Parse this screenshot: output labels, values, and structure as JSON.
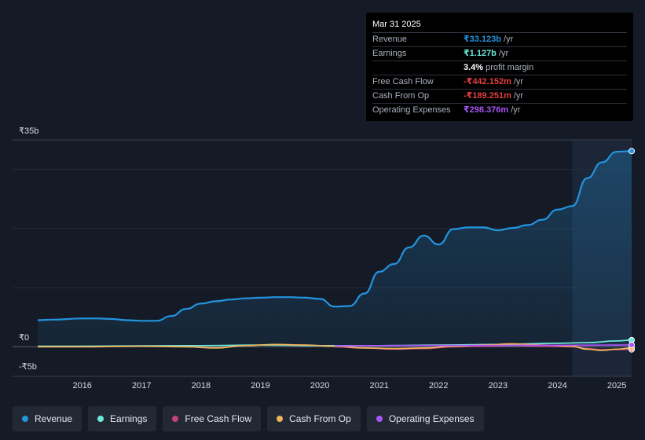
{
  "tooltip": {
    "date": "Mar 31 2025",
    "rows": [
      {
        "label": "Revenue",
        "value": "₹33.123b",
        "unit": "/yr",
        "color": "#2394df"
      },
      {
        "label": "Earnings",
        "value": "₹1.127b",
        "unit": "/yr",
        "color": "#6ee7dc"
      },
      {
        "label": "",
        "value": "3.4%",
        "unit": "profit margin",
        "color": "#ffffff"
      },
      {
        "label": "Free Cash Flow",
        "value": "-₹442.152m",
        "unit": "/yr",
        "color": "#e53e3e"
      },
      {
        "label": "Cash From Op",
        "value": "-₹189.251m",
        "unit": "/yr",
        "color": "#e53e3e"
      },
      {
        "label": "Operating Expenses",
        "value": "₹298.376m",
        "unit": "/yr",
        "color": "#a855f7"
      }
    ]
  },
  "legend": [
    {
      "label": "Revenue",
      "color": "#2394df"
    },
    {
      "label": "Earnings",
      "color": "#6ee7dc"
    },
    {
      "label": "Free Cash Flow",
      "color": "#c2417a"
    },
    {
      "label": "Cash From Op",
      "color": "#f0b45a"
    },
    {
      "label": "Operating Expenses",
      "color": "#a855f7"
    }
  ],
  "chart_data": {
    "type": "area",
    "y_unit": "₹b",
    "ylim": [
      -5,
      35
    ],
    "y_tick_labels": [
      {
        "value": 35,
        "label": "₹35b"
      },
      {
        "value": 0,
        "label": "₹0"
      },
      {
        "value": -5,
        "label": "-₹5b"
      }
    ],
    "x_tick_labels": [
      "2016",
      "2017",
      "2018",
      "2019",
      "2020",
      "2021",
      "2022",
      "2023",
      "2024",
      "2025"
    ],
    "x_tick_values": [
      2016,
      2017,
      2018,
      2019,
      2020,
      2021,
      2022,
      2023,
      2024,
      2025
    ],
    "xlim": [
      2015.25,
      2025.25
    ],
    "highlight_start": 2024.25,
    "series": [
      {
        "name": "Revenue",
        "color": "#2394df",
        "x": [
          2015.25,
          2015.5,
          2016.0,
          2016.25,
          2016.5,
          2016.75,
          2017.0,
          2017.25,
          2017.5,
          2017.75,
          2018.0,
          2018.25,
          2018.5,
          2018.75,
          2019.0,
          2019.25,
          2019.5,
          2019.75,
          2020.0,
          2020.25,
          2020.5,
          2020.75,
          2021.0,
          2021.25,
          2021.5,
          2021.75,
          2022.0,
          2022.25,
          2022.5,
          2022.75,
          2023.0,
          2023.25,
          2023.5,
          2023.75,
          2024.0,
          2024.25,
          2024.5,
          2024.75,
          2025.0,
          2025.25
        ],
        "values": [
          4.5,
          4.6,
          4.8,
          4.8,
          4.7,
          4.5,
          4.4,
          4.4,
          5.2,
          6.4,
          7.3,
          7.7,
          8.0,
          8.2,
          8.3,
          8.4,
          8.4,
          8.3,
          8.1,
          6.8,
          6.9,
          9.0,
          12.7,
          14.0,
          16.8,
          18.8,
          17.3,
          19.9,
          20.2,
          20.2,
          19.7,
          20.1,
          20.6,
          21.5,
          23.2,
          23.8,
          28.5,
          31.2,
          33.0,
          33.1
        ]
      },
      {
        "name": "Earnings",
        "color": "#6ee7dc",
        "x": [
          2015.25,
          2016.0,
          2017.0,
          2018.0,
          2019.0,
          2020.0,
          2021.0,
          2022.0,
          2023.0,
          2024.0,
          2024.5,
          2025.0,
          2025.25
        ],
        "values": [
          0.1,
          0.1,
          0.15,
          0.2,
          0.3,
          0.2,
          0.2,
          0.3,
          0.4,
          0.6,
          0.7,
          1.0,
          1.127
        ]
      },
      {
        "name": "Free Cash Flow",
        "color": "#c2417a",
        "x": [
          2020.25,
          2020.75,
          2021.25,
          2021.75,
          2022.25,
          2022.75,
          2023.25,
          2023.75,
          2024.25,
          2024.5,
          2024.75,
          2025.0,
          2025.25
        ],
        "values": [
          0.0,
          -0.2,
          -0.4,
          -0.3,
          0.0,
          0.1,
          0.2,
          0.1,
          0.0,
          -0.3,
          -0.5,
          -0.45,
          -0.442
        ]
      },
      {
        "name": "Cash From Op",
        "color": "#f0b45a",
        "x": [
          2015.25,
          2016.0,
          2017.0,
          2017.75,
          2018.25,
          2018.75,
          2019.25,
          2019.75,
          2020.25,
          2020.75,
          2021.25,
          2021.75,
          2022.25,
          2022.75,
          2023.25,
          2023.75,
          2024.25,
          2024.5,
          2024.75,
          2025.0,
          2025.25
        ],
        "values": [
          0.0,
          0.0,
          0.1,
          0.0,
          -0.2,
          0.2,
          0.4,
          0.3,
          0.1,
          -0.2,
          -0.3,
          -0.2,
          0.1,
          0.3,
          0.5,
          0.3,
          0.1,
          -0.4,
          -0.6,
          -0.4,
          -0.189
        ]
      },
      {
        "name": "Operating Expenses",
        "color": "#a855f7",
        "x": [
          2020.25,
          2021.0,
          2022.0,
          2023.0,
          2024.0,
          2024.5,
          2025.0,
          2025.25
        ],
        "values": [
          0.15,
          0.2,
          0.22,
          0.24,
          0.26,
          0.28,
          0.29,
          0.298
        ]
      }
    ]
  }
}
